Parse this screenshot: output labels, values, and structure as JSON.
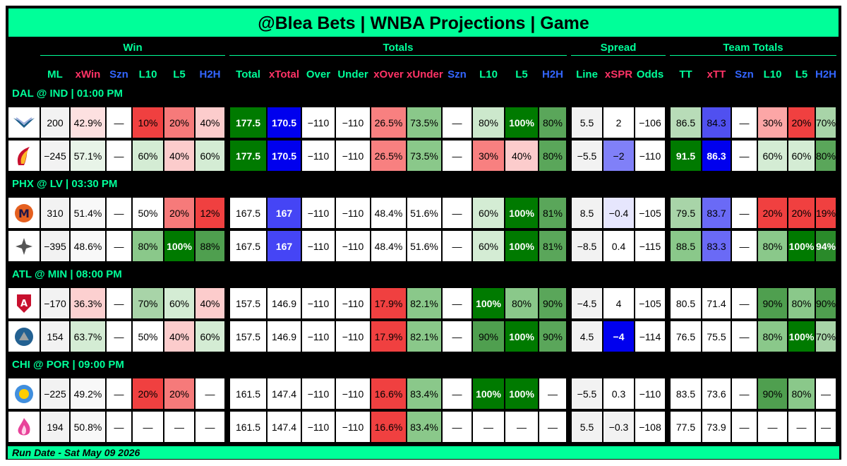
{
  "title": "@Blea Bets | WNBA Projections | Game",
  "groups": {
    "win": "Win",
    "totals": "Totals",
    "spread": "Spread",
    "team_totals": "Team Totals"
  },
  "headers": [
    "ML",
    "xWin",
    "Szn",
    "L10",
    "L5",
    "H2H",
    "Total",
    "xTotal",
    "Over",
    "Under",
    "xOver",
    "xUnder",
    "Szn",
    "L10",
    "L5",
    "H2H",
    "Line",
    "xSPR",
    "Odds",
    "TT",
    "xTT",
    "Szn",
    "L10",
    "L5",
    "H2H"
  ],
  "header_colors": [
    "#00ff99",
    "#ff3366",
    "#3366ff",
    "#00ff99",
    "#00ff99",
    "#3366ff",
    "#00ff99",
    "#ff3366",
    "#00ff99",
    "#00ff99",
    "#ff3366",
    "#ff3366",
    "#3366ff",
    "#00ff99",
    "#00ff99",
    "#3366ff",
    "#00ff99",
    "#ff3366",
    "#00ff99",
    "#00ff99",
    "#ff3366",
    "#3366ff",
    "#00ff99",
    "#00ff99",
    "#3366ff"
  ],
  "games": [
    {
      "label": "DAL @ IND | 01:00 PM",
      "teams": [
        {
          "logo": "wings-logo",
          "cells": [
            "200",
            "42.9%",
            "—",
            "10%",
            "20%",
            "40%",
            "177.5",
            "170.5",
            "−110",
            "−110",
            "26.5%",
            "73.5%",
            "—",
            "80%",
            "100%",
            "80%",
            "5.5",
            "2",
            "−106",
            "86.5",
            "84.3",
            "—",
            "30%",
            "20%",
            "70%"
          ],
          "colors": [
            "#f2f2f2",
            "#fde0e0",
            "#fff",
            "#f04040",
            "#f67a7a",
            "#fccccc",
            "#007a00",
            "#0000ee",
            "#fff",
            "#fff",
            "#f88080",
            "#8ac88a",
            "#fff",
            "#cce8cc",
            "#007a00",
            "#5aa65a",
            "#f2f2f2",
            "#fff",
            "#fff",
            "#b8dcb8",
            "#5050f0",
            "#fff",
            "#fca6a6",
            "#f04040",
            "#a8d4a8"
          ]
        },
        {
          "logo": "fever-logo",
          "cells": [
            "−245",
            "57.1%",
            "—",
            "60%",
            "40%",
            "60%",
            "177.5",
            "170.5",
            "−110",
            "−110",
            "26.5%",
            "73.5%",
            "—",
            "30%",
            "40%",
            "80%",
            "−5.5",
            "−2",
            "−110",
            "91.5",
            "86.3",
            "—",
            "60%",
            "60%",
            "80%"
          ],
          "colors": [
            "#f2f2f2",
            "#e8f4e8",
            "#fff",
            "#d4ecd4",
            "#fccccc",
            "#d4ecd4",
            "#007a00",
            "#0000ee",
            "#fff",
            "#fff",
            "#f88080",
            "#8ac88a",
            "#fff",
            "#f88080",
            "#fccccc",
            "#5aa65a",
            "#f2f2f2",
            "#8080f8",
            "#fff",
            "#007a00",
            "#0000ee",
            "#fff",
            "#d4ecd4",
            "#d4ecd4",
            "#5aa65a"
          ]
        }
      ]
    },
    {
      "label": "PHX @ LV | 03:30 PM",
      "teams": [
        {
          "logo": "mercury-logo",
          "cells": [
            "310",
            "51.4%",
            "—",
            "50%",
            "20%",
            "12%",
            "167.5",
            "167",
            "−110",
            "−110",
            "48.4%",
            "51.6%",
            "—",
            "60%",
            "100%",
            "81%",
            "8.5",
            "−0.4",
            "−105",
            "79.5",
            "83.7",
            "—",
            "20%",
            "20%",
            "19%"
          ],
          "colors": [
            "#f2f2f2",
            "#f8f8f8",
            "#fff",
            "#fff",
            "#f67a7a",
            "#f04040",
            "#fff",
            "#4545f5",
            "#fff",
            "#fff",
            "#fff",
            "#fff",
            "#fff",
            "#d4ecd4",
            "#007a00",
            "#5aa65a",
            "#f2f2f2",
            "#e6e6fd",
            "#fff",
            "#a8d4a8",
            "#6a6af6",
            "#fff",
            "#f04040",
            "#f04040",
            "#f04040"
          ]
        },
        {
          "logo": "aces-logo",
          "cells": [
            "−395",
            "48.6%",
            "—",
            "80%",
            "100%",
            "88%",
            "167.5",
            "167",
            "−110",
            "−110",
            "48.4%",
            "51.6%",
            "—",
            "60%",
            "100%",
            "81%",
            "−8.5",
            "0.4",
            "−115",
            "88.5",
            "83.3",
            "—",
            "80%",
            "100%",
            "94%"
          ],
          "colors": [
            "#f2f2f2",
            "#f8f8f8",
            "#fff",
            "#8ac88a",
            "#007a00",
            "#4f9f4f",
            "#fff",
            "#4545f5",
            "#fff",
            "#fff",
            "#fff",
            "#fff",
            "#fff",
            "#d4ecd4",
            "#007a00",
            "#5aa65a",
            "#f2f2f2",
            "#fff",
            "#fff",
            "#8ac88a",
            "#6a6af6",
            "#fff",
            "#8ac88a",
            "#007a00",
            "#2a8a2a"
          ]
        }
      ]
    },
    {
      "label": "ATL @ MIN | 08:00 PM",
      "teams": [
        {
          "logo": "dream-logo",
          "cells": [
            "−170",
            "36.3%",
            "—",
            "70%",
            "60%",
            "40%",
            "157.5",
            "146.9",
            "−110",
            "−110",
            "17.9%",
            "82.1%",
            "—",
            "100%",
            "80%",
            "90%",
            "−4.5",
            "4",
            "−105",
            "80.5",
            "71.4",
            "—",
            "90%",
            "80%",
            "90%"
          ],
          "colors": [
            "#f2f2f2",
            "#fcd0d0",
            "#fff",
            "#a8d4a8",
            "#d4ecd4",
            "#fccccc",
            "#fff",
            "#fff",
            "#fff",
            "#fff",
            "#f04040",
            "#8ac88a",
            "#fff",
            "#007a00",
            "#8ac88a",
            "#5aa65a",
            "#f2f2f2",
            "#fff",
            "#fff",
            "#fff",
            "#fff",
            "#fff",
            "#4f9f4f",
            "#8ac88a",
            "#4f9f4f"
          ]
        },
        {
          "logo": "lynx-logo",
          "cells": [
            "154",
            "63.7%",
            "—",
            "50%",
            "40%",
            "60%",
            "157.5",
            "146.9",
            "−110",
            "−110",
            "17.9%",
            "82.1%",
            "—",
            "90%",
            "100%",
            "90%",
            "4.5",
            "−4",
            "−114",
            "76.5",
            "75.5",
            "—",
            "80%",
            "100%",
            "70%"
          ],
          "colors": [
            "#f2f2f2",
            "#d4ecd4",
            "#fff",
            "#fff",
            "#fccccc",
            "#d4ecd4",
            "#fff",
            "#fff",
            "#fff",
            "#fff",
            "#f04040",
            "#8ac88a",
            "#fff",
            "#4f9f4f",
            "#007a00",
            "#5aa65a",
            "#f2f2f2",
            "#0000ee",
            "#fff",
            "#fff",
            "#fff",
            "#fff",
            "#8ac88a",
            "#007a00",
            "#a8d4a8"
          ]
        }
      ]
    },
    {
      "label": "CHI @ POR | 09:00 PM",
      "teams": [
        {
          "logo": "sky-logo",
          "cells": [
            "−225",
            "49.2%",
            "—",
            "20%",
            "20%",
            "—",
            "161.5",
            "147.4",
            "−110",
            "−110",
            "16.6%",
            "83.4%",
            "—",
            "100%",
            "100%",
            "—",
            "−5.5",
            "0.3",
            "−110",
            "83.5",
            "73.6",
            "—",
            "90%",
            "80%",
            "—"
          ],
          "colors": [
            "#f2f2f2",
            "#f8f8f8",
            "#fff",
            "#f04040",
            "#f67a7a",
            "#fff",
            "#fff",
            "#fff",
            "#fff",
            "#fff",
            "#f04040",
            "#8ac88a",
            "#fff",
            "#007a00",
            "#007a00",
            "#fff",
            "#f2f2f2",
            "#fff",
            "#fff",
            "#fff",
            "#fff",
            "#fff",
            "#4f9f4f",
            "#8ac88a",
            "#fff"
          ]
        },
        {
          "logo": "fire-logo",
          "cells": [
            "194",
            "50.8%",
            "—",
            "—",
            "—",
            "—",
            "161.5",
            "147.4",
            "−110",
            "−110",
            "16.6%",
            "83.4%",
            "—",
            "—",
            "—",
            "—",
            "5.5",
            "−0.3",
            "−108",
            "77.5",
            "73.9",
            "—",
            "—",
            "—",
            "—"
          ],
          "colors": [
            "#f2f2f2",
            "#f8f8f8",
            "#fff",
            "#fff",
            "#fff",
            "#fff",
            "#fff",
            "#fff",
            "#fff",
            "#fff",
            "#f04040",
            "#8ac88a",
            "#fff",
            "#fff",
            "#fff",
            "#fff",
            "#f2f2f2",
            "#f2f2f2",
            "#fff",
            "#fff",
            "#fff",
            "#fff",
            "#fff",
            "#fff",
            "#fff"
          ]
        }
      ]
    }
  ],
  "footer": "Run Date - Sat May 09 2026"
}
